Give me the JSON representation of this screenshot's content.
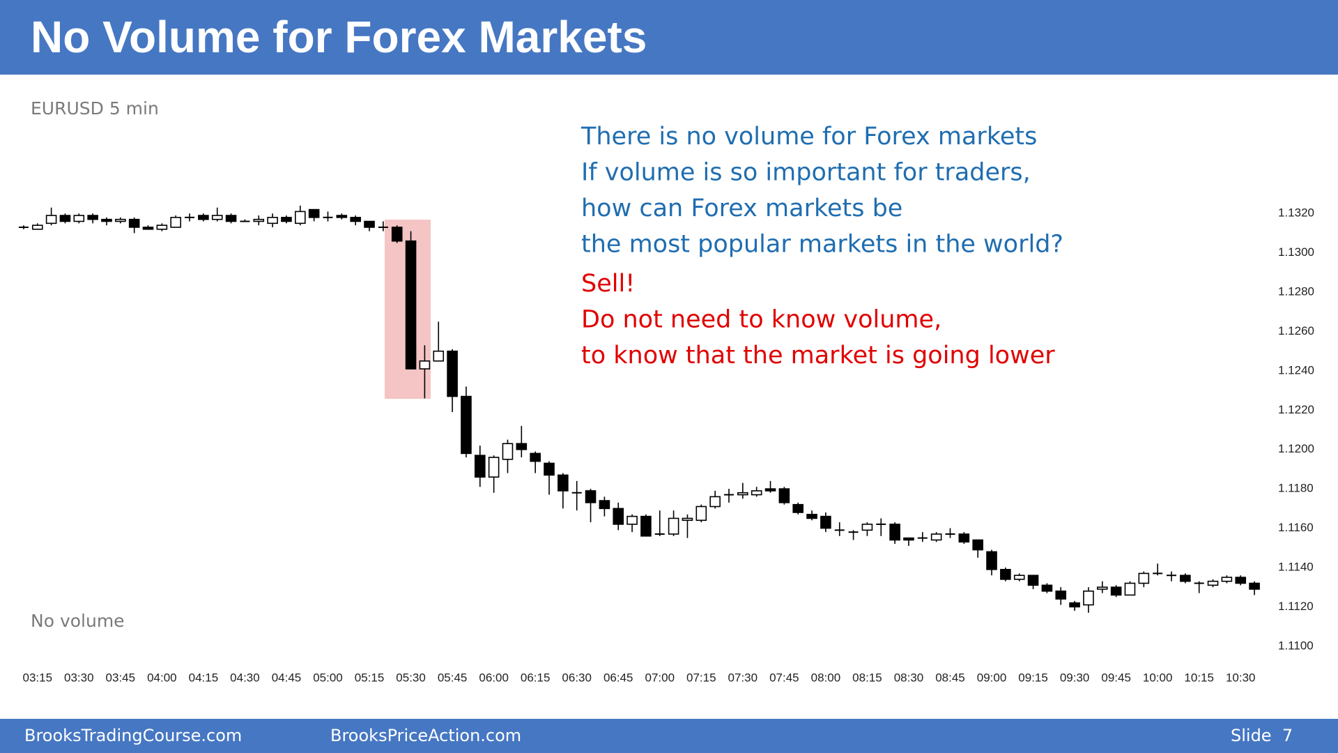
{
  "header": {
    "title": "No Volume for Forex Markets"
  },
  "footer": {
    "left": "BrooksTradingCourse.com",
    "center": "BrooksPriceAction.com",
    "slide": "Slide  7"
  },
  "chart_data": {
    "type": "candlestick",
    "subtitle": "EURUSD 5 min",
    "note": "No volume",
    "annotations": [
      {
        "color": "#1f6db0",
        "lines": [
          "There is no volume for Forex markets",
          "If volume is so important for traders,",
          "how can Forex markets be",
          "the most popular markets in the world?"
        ]
      },
      {
        "color": "#e00000",
        "lines": [
          "Sell!",
          "Do not need to know volume,",
          "to know that the market is going lower"
        ]
      }
    ],
    "up_color": "#ffffff",
    "down_color": "#000000",
    "categories": [
      null,
      "03:15",
      null,
      null,
      "03:30",
      null,
      null,
      "03:45",
      null,
      null,
      "04:00",
      null,
      null,
      "04:15",
      null,
      null,
      "04:30",
      null,
      null,
      "04:45",
      null,
      null,
      "05:00",
      null,
      null,
      "05:15",
      null,
      null,
      "05:30",
      null,
      null,
      "05:45",
      null,
      null,
      "06:00",
      null,
      null,
      "06:15",
      null,
      null,
      "06:30",
      null,
      null,
      "06:45",
      null,
      null,
      "07:00",
      null,
      null,
      "07:15",
      null,
      null,
      "07:30",
      null,
      null,
      "07:45",
      null,
      null,
      "08:00",
      null,
      null,
      "08:15",
      null,
      null,
      "08:30",
      null,
      null,
      "08:45",
      null,
      null,
      "09:00",
      null,
      null,
      "09:15",
      null,
      null,
      "09:30",
      null,
      null,
      "09:45",
      null,
      null,
      "10:00",
      null,
      null,
      "10:15",
      null,
      null,
      "10:30",
      null
    ],
    "open": [
      1.1313,
      1.1312,
      1.1315,
      1.1319,
      1.1316,
      1.1319,
      1.1317,
      1.1316,
      1.1317,
      1.1313,
      1.1312,
      1.1313,
      1.1318,
      1.1319,
      1.1317,
      1.1319,
      1.1316,
      1.1316,
      1.1315,
      1.1318,
      1.1315,
      1.1322,
      1.1318,
      1.1319,
      1.1318,
      1.1316,
      1.1313,
      1.1313,
      1.1306,
      1.1241,
      1.1245,
      1.125,
      1.1227,
      1.1197,
      1.1186,
      1.1195,
      1.1203,
      1.1198,
      1.1193,
      1.1187,
      1.1178,
      1.1179,
      1.1174,
      1.117,
      1.1162,
      1.1166,
      1.1157,
      1.1157,
      1.1164,
      1.1164,
      1.1171,
      1.1177,
      1.1177,
      1.1177,
      1.118,
      1.118,
      1.1172,
      1.1167,
      1.1166,
      1.1159,
      1.1158,
      1.1159,
      1.1162,
      1.1162,
      1.1155,
      1.1155,
      1.1154,
      1.1157,
      1.1157,
      1.1154,
      1.1148,
      1.1139,
      1.1134,
      1.1136,
      1.1131,
      1.1128,
      1.1122,
      1.1121,
      1.1129,
      1.113,
      1.1126,
      1.1132,
      1.1137,
      1.1136,
      1.1136,
      1.1132,
      1.1131,
      1.1133,
      1.1135,
      1.1132
    ],
    "high": [
      1.1314,
      1.1315,
      1.1323,
      1.132,
      1.132,
      1.132,
      1.1318,
      1.1318,
      1.1318,
      1.1314,
      1.1315,
      1.1319,
      1.132,
      1.132,
      1.1323,
      1.132,
      1.1317,
      1.1319,
      1.132,
      1.1319,
      1.1324,
      1.1322,
      1.1321,
      1.132,
      1.1319,
      1.1316,
      1.1316,
      1.1314,
      1.1311,
      1.1253,
      1.1265,
      1.1251,
      1.1232,
      1.1202,
      1.1197,
      1.1205,
      1.1212,
      1.1199,
      1.1194,
      1.1188,
      1.1184,
      1.118,
      1.1176,
      1.1173,
      1.1167,
      1.1167,
      1.1169,
      1.1169,
      1.1167,
      1.1172,
      1.1179,
      1.118,
      1.1183,
      1.1181,
      1.1184,
      1.1181,
      1.1173,
      1.1169,
      1.1168,
      1.1163,
      1.1159,
      1.1163,
      1.1165,
      1.1163,
      1.1155,
      1.1158,
      1.1158,
      1.116,
      1.1158,
      1.1154,
      1.1149,
      1.114,
      1.1137,
      1.1136,
      1.1132,
      1.113,
      1.1123,
      1.113,
      1.1133,
      1.1131,
      1.1133,
      1.1138,
      1.1142,
      1.1138,
      1.1137,
      1.1133,
      1.1134,
      1.1136,
      1.1136,
      1.1133
    ],
    "low": [
      1.1312,
      1.1312,
      1.1314,
      1.1315,
      1.1315,
      1.1315,
      1.1314,
      1.1315,
      1.131,
      1.1312,
      1.1311,
      1.1313,
      1.1316,
      1.1316,
      1.1316,
      1.1315,
      1.1316,
      1.1314,
      1.1313,
      1.1315,
      1.1314,
      1.1316,
      1.1316,
      1.1317,
      1.1314,
      1.1311,
      1.1311,
      1.1305,
      1.1241,
      1.1226,
      1.1245,
      1.1219,
      1.1196,
      1.1181,
      1.1178,
      1.1188,
      1.1196,
      1.1188,
      1.1177,
      1.117,
      1.1169,
      1.1163,
      1.1166,
      1.1159,
      1.1158,
      1.1156,
      1.1156,
      1.1156,
      1.1155,
      1.1163,
      1.117,
      1.1173,
      1.1175,
      1.1176,
      1.1178,
      1.1172,
      1.1167,
      1.1164,
      1.1158,
      1.1156,
      1.1154,
      1.1156,
      1.1156,
      1.1152,
      1.1151,
      1.1153,
      1.1153,
      1.1155,
      1.1152,
      1.1145,
      1.1136,
      1.1133,
      1.1133,
      1.1129,
      1.1127,
      1.1121,
      1.1118,
      1.1117,
      1.1127,
      1.1125,
      1.1126,
      1.113,
      1.1136,
      1.1133,
      1.1132,
      1.1127,
      1.113,
      1.1132,
      1.1131,
      1.1126
    ],
    "close": [
      1.1313,
      1.1314,
      1.1319,
      1.1316,
      1.1319,
      1.1317,
      1.1316,
      1.1317,
      1.1313,
      1.1312,
      1.1314,
      1.1318,
      1.1318,
      1.1317,
      1.1319,
      1.1316,
      1.1316,
      1.1317,
      1.1318,
      1.1316,
      1.1321,
      1.1318,
      1.1318,
      1.1318,
      1.1316,
      1.1313,
      1.1313,
      1.1306,
      1.1241,
      1.1245,
      1.125,
      1.1227,
      1.1198,
      1.1186,
      1.1196,
      1.1203,
      1.12,
      1.1194,
      1.1187,
      1.1179,
      1.1178,
      1.1173,
      1.117,
      1.1162,
      1.1166,
      1.1156,
      1.1157,
      1.1165,
      1.1165,
      1.1171,
      1.1176,
      1.1177,
      1.1178,
      1.1179,
      1.1179,
      1.1173,
      1.1168,
      1.1165,
      1.116,
      1.1159,
      1.1158,
      1.1162,
      1.1162,
      1.1154,
      1.1154,
      1.1155,
      1.1157,
      1.1157,
      1.1153,
      1.1149,
      1.1139,
      1.1134,
      1.1136,
      1.1131,
      1.1128,
      1.1124,
      1.112,
      1.1128,
      1.113,
      1.1126,
      1.1132,
      1.1137,
      1.1137,
      1.1136,
      1.1133,
      1.1132,
      1.1133,
      1.1135,
      1.1132,
      1.1129
    ],
    "ylim": [
      1.109,
      1.133
    ],
    "yticks": [
      {
        "value": 1.11,
        "label": "1.1100"
      },
      {
        "value": 1.112,
        "label": "1.1120"
      },
      {
        "value": 1.114,
        "label": "1.1140"
      },
      {
        "value": 1.116,
        "label": "1.1160"
      },
      {
        "value": 1.118,
        "label": "1.1180"
      },
      {
        "value": 1.12,
        "label": "1.1200"
      },
      {
        "value": 1.122,
        "label": "1.1220"
      },
      {
        "value": 1.124,
        "label": "1.1240"
      },
      {
        "value": 1.126,
        "label": "1.1260"
      },
      {
        "value": 1.128,
        "label": "1.1280"
      },
      {
        "value": 1.13,
        "label": "1.1300"
      },
      {
        "value": 1.132,
        "label": "1.1320"
      }
    ],
    "grid": false
  }
}
